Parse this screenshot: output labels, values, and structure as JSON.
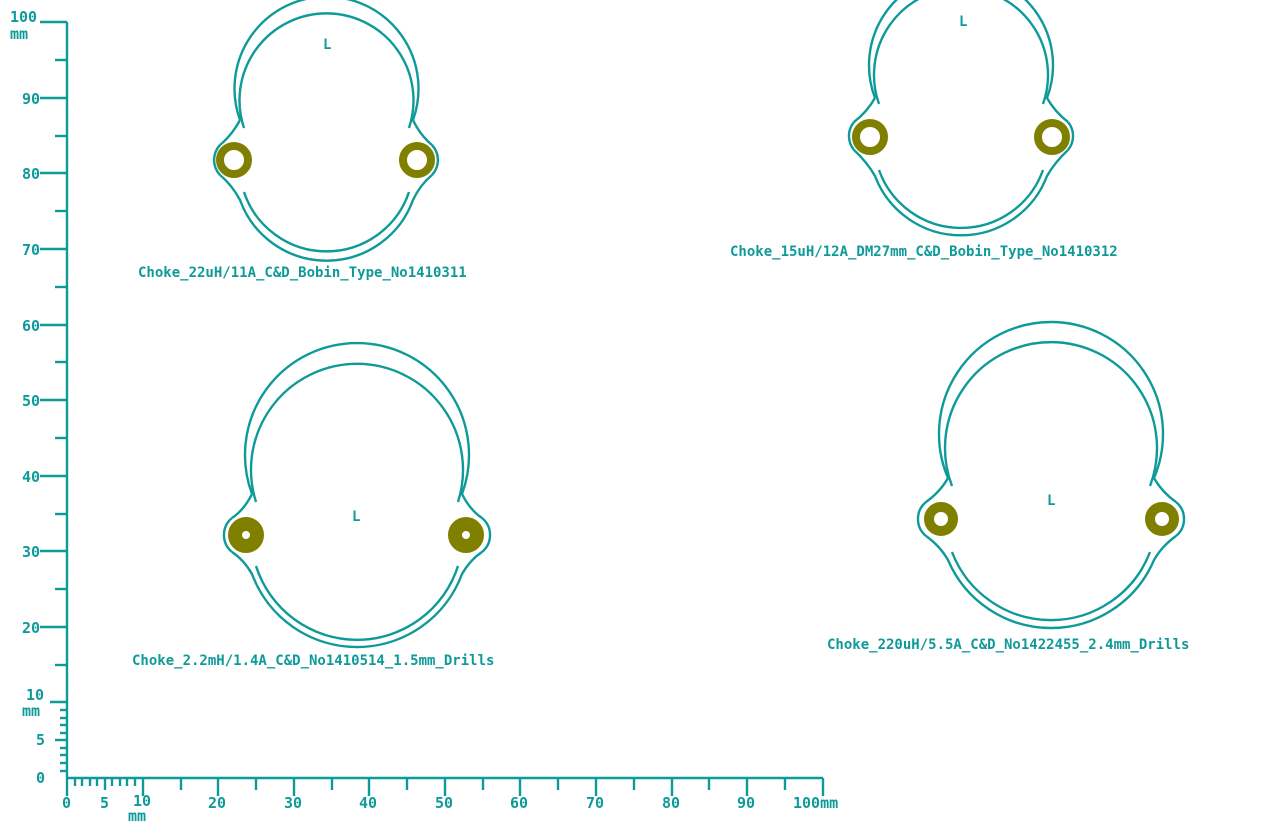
{
  "colors": {
    "silkscreen": "#0f9a9a",
    "pad": "#7f7f00",
    "background": "#ffffff"
  },
  "ruler": {
    "units_label_top": "100\nmm",
    "left_labels": [
      "100",
      "90",
      "80",
      "70",
      "60",
      "50",
      "40",
      "30",
      "20",
      "10",
      "5",
      "0"
    ],
    "left_small_unit": "mm",
    "bottom_labels": [
      "0",
      "5",
      "10",
      "20",
      "30",
      "40",
      "50",
      "60",
      "70",
      "80",
      "90",
      "100mm"
    ],
    "bottom_small_unit": "mm"
  },
  "footprints": [
    {
      "ref": "L",
      "name": "Choke_22uH/11A_C&D_Bobin_Type_No1410311"
    },
    {
      "ref": "L",
      "name": "Choke_15uH/12A_DM27mm_C&D_Bobin_Type_No1410312"
    },
    {
      "ref": "L",
      "name": "Choke_2.2mH/1.4A_C&D_No1410514_1.5mm_Drills"
    },
    {
      "ref": "L",
      "name": "Choke_220uH/5.5A_C&D_No1422455_2.4mm_Drills"
    }
  ]
}
